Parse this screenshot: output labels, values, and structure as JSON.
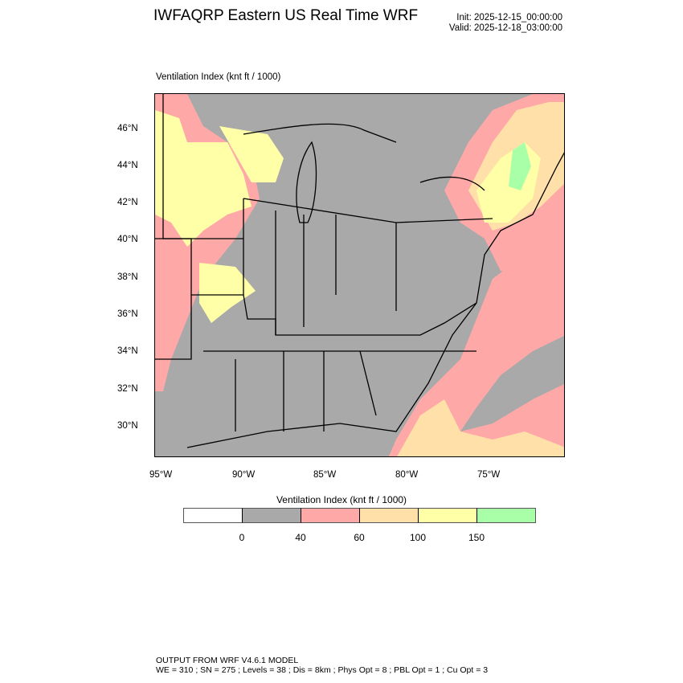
{
  "header": {
    "title": "IWFAQRP Eastern US Real Time WRF",
    "init": "Init: 2025-12-15_00:00:00",
    "valid": "Valid: 2025-12-18_03:00:00"
  },
  "plot": {
    "subtitle": "Ventilation Index   (knt ft / 1000)",
    "lat_ticks": [
      "46°N",
      "44°N",
      "42°N",
      "40°N",
      "38°N",
      "36°N",
      "34°N",
      "32°N",
      "30°N"
    ],
    "lon_ticks": [
      "95°W",
      "90°W",
      "85°W",
      "80°W",
      "75°W"
    ]
  },
  "colorbar": {
    "title": "Ventilation Index  (knt ft / 1000)",
    "labels": [
      "0",
      "40",
      "60",
      "100",
      "150"
    ],
    "colors": [
      "#ffffff",
      "#a9a9a9",
      "#ffa8a8",
      "#ffe0a8",
      "#ffffa8",
      "#a8ffa8"
    ]
  },
  "footer": {
    "line1": "OUTPUT FROM WRF V4.6.1 MODEL",
    "line2": "WE = 310 ; SN = 275 ; Levels = 38 ; Dis = 8km ; Phys Opt = 8 ; PBL Opt = 1 ; Cu Opt = 3"
  }
}
